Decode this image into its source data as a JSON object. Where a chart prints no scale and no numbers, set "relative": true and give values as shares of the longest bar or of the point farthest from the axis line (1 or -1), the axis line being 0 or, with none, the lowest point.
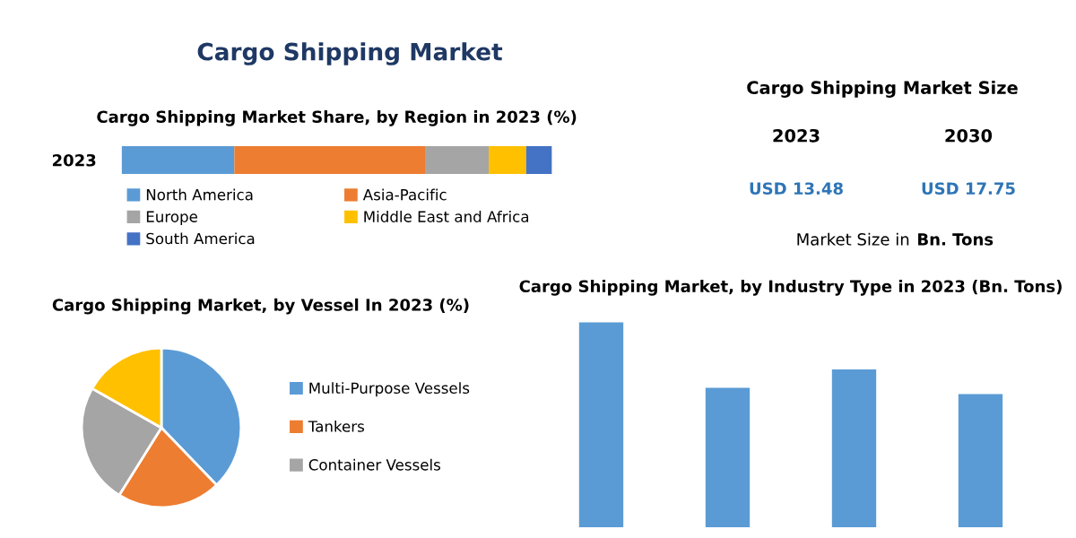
{
  "chart_data": [
    {
      "type": "other",
      "title": "Cargo Shipping Market"
    },
    {
      "type": "bar",
      "title": "Cargo Shipping Market Share, by Region in 2023 (%)",
      "orientation": "horizontal",
      "stacked": true,
      "relative": true,
      "legend": "bottom",
      "categories": [
        "2023"
      ],
      "series": [
        {
          "name": "North America",
          "color": "#5b9bd5",
          "values": [
            0.262
          ]
        },
        {
          "name": "Asia-Pacific",
          "color": "#ed7d31",
          "values": [
            0.443
          ]
        },
        {
          "name": "Europe",
          "color": "#a5a5a5",
          "values": [
            0.148
          ]
        },
        {
          "name": "Middle East and Africa",
          "color": "#ffc000",
          "values": [
            0.087
          ]
        },
        {
          "name": "South America",
          "color": "#4472c4",
          "values": [
            0.06
          ]
        }
      ]
    },
    {
      "type": "other",
      "title": "Cargo Shipping Market Size",
      "categories": [
        "2023",
        "2030"
      ],
      "values": [
        13.48,
        17.75
      ],
      "value_labels": [
        "USD 13.48",
        "USD 17.75"
      ],
      "annotations": [
        "Market Size in",
        "Bn. Tons"
      ]
    },
    {
      "type": "pie",
      "title": "Cargo Shipping Market, by Vessel In 2023 (%)",
      "legend": "right",
      "categories": [
        "Multi-Purpose Vessels",
        "Tankers",
        "Container Vessels",
        null
      ],
      "values": [
        37.8,
        21.1,
        24.3,
        16.8
      ],
      "colors": [
        "#5b9bd5",
        "#ed7d31",
        "#a5a5a5",
        "#ffc000"
      ]
    },
    {
      "type": "bar",
      "title": "Cargo Shipping Market, by Industry Type in 2023 (Bn. Tons)",
      "relative": true,
      "categories": [
        null,
        null,
        null,
        null
      ],
      "values": [
        1,
        0.68,
        0.77,
        0.65
      ],
      "color": "#5b9bd5"
    }
  ]
}
